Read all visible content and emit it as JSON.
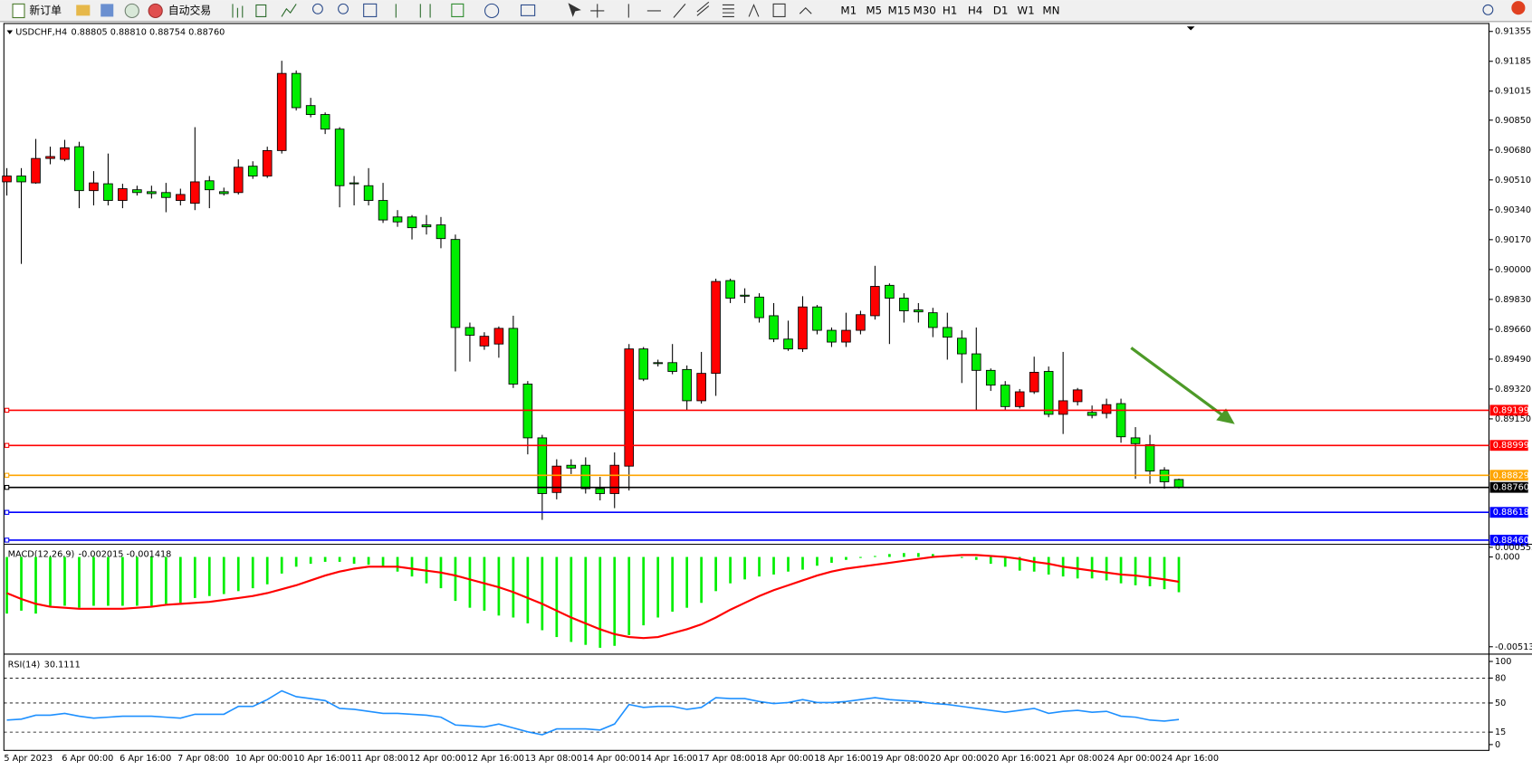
{
  "toolbar": {
    "new_order": "新订单",
    "auto_trading": "自动交易",
    "timeframes": [
      "M1",
      "M5",
      "M15",
      "M30",
      "H1",
      "H4",
      "D1",
      "W1",
      "MN"
    ]
  },
  "chart_data": [
    {
      "type": "candlestick",
      "title": "USDCHF,H4",
      "title_values": "0.88805 0.88810 0.88754 0.88760",
      "categories": [
        "5 Apr 2023",
        null,
        null,
        null,
        "6 Apr 00:00",
        null,
        null,
        null,
        "6 Apr 16:00",
        null,
        null,
        null,
        "7 Apr 08:00",
        null,
        null,
        null,
        "10 Apr 00:00",
        null,
        null,
        null,
        "10 Apr 16:00",
        null,
        null,
        null,
        "11 Apr 08:00",
        null,
        null,
        null,
        "12 Apr 00:00",
        null,
        null,
        null,
        "12 Apr 16:00",
        null,
        null,
        null,
        "13 Apr 08:00",
        null,
        null,
        null,
        "14 Apr 00:00",
        null,
        null,
        null,
        "14 Apr 16:00",
        null,
        null,
        null,
        "17 Apr 08:00",
        null,
        null,
        null,
        "18 Apr 00:00",
        null,
        null,
        null,
        "18 Apr 16:00",
        null,
        null,
        null,
        "19 Apr 08:00",
        null,
        null,
        null,
        "20 Apr 00:00",
        null,
        null,
        null,
        "20 Apr 16:00",
        null,
        null,
        null,
        "21 Apr 08:00",
        null,
        null,
        null,
        "24 Apr 00:00",
        null,
        null,
        null,
        "24 Apr 16:00",
        null
      ],
      "open": [
        0.90499,
        0.90532,
        0.90493,
        0.90632,
        0.90627,
        0.90699,
        0.90449,
        0.90488,
        0.90393,
        0.90454,
        0.90443,
        0.90438,
        0.90393,
        0.90377,
        0.90505,
        0.90443,
        0.90438,
        0.90588,
        0.90532,
        0.90677,
        0.91116,
        0.90933,
        0.90882,
        0.90799,
        0.90493,
        0.90477,
        0.90393,
        0.90299,
        0.90299,
        0.90254,
        0.90254,
        0.90171,
        0.8967,
        0.89565,
        0.89576,
        0.89665,
        0.89348,
        0.89042,
        0.88731,
        0.88886,
        0.88886,
        0.88753,
        0.88725,
        0.88881,
        0.89548,
        0.8947,
        0.8947,
        0.89431,
        0.89253,
        0.89409,
        0.89937,
        0.89854,
        0.89843,
        0.89737,
        0.89604,
        0.89548,
        0.89787,
        0.89654,
        0.89587,
        0.89654,
        0.89737,
        0.8991,
        0.89837,
        0.8977,
        0.89754,
        0.8967,
        0.89609,
        0.8952,
        0.89426,
        0.89342,
        0.8922,
        0.89304,
        0.8942,
        0.89176,
        0.89248,
        0.89187,
        0.89181,
        0.89237,
        0.89042,
        0.89003,
        0.88859,
        0.88805
      ],
      "high": [
        0.90577,
        0.90577,
        0.90743,
        0.90699,
        0.90738,
        0.90727,
        0.9056,
        0.9066,
        0.90488,
        0.90477,
        0.90477,
        0.90493,
        0.9046,
        0.9081,
        0.90532,
        0.90466,
        0.90627,
        0.90616,
        0.90699,
        0.91188,
        0.91133,
        0.90977,
        0.90894,
        0.9081,
        0.90532,
        0.90577,
        0.90493,
        0.90338,
        0.9031,
        0.9031,
        0.90299,
        0.90199,
        0.89698,
        0.89643,
        0.89676,
        0.89737,
        0.89365,
        0.89059,
        0.8892,
        0.8892,
        0.88931,
        0.8882,
        0.88959,
        0.89576,
        0.89559,
        0.89487,
        0.89576,
        0.89454,
        0.89531,
        0.89948,
        0.89948,
        0.89893,
        0.89865,
        0.89809,
        0.89709,
        0.89848,
        0.89798,
        0.8967,
        0.89754,
        0.89765,
        0.90021,
        0.89921,
        0.89865,
        0.89809,
        0.89782,
        0.89754,
        0.89654,
        0.8967,
        0.89437,
        0.89365,
        0.8932,
        0.89504,
        0.89448,
        0.89531,
        0.89326,
        0.89226,
        0.89265,
        0.89265,
        0.89103,
        0.89059,
        0.88875,
        0.8881
      ],
      "low": [
        0.90421,
        0.90032,
        0.90488,
        0.90599,
        0.90616,
        0.90349,
        0.90365,
        0.90365,
        0.90349,
        0.90421,
        0.90404,
        0.90326,
        0.90365,
        0.90338,
        0.90349,
        0.90421,
        0.90427,
        0.90516,
        0.90521,
        0.9066,
        0.90905,
        0.90866,
        0.90771,
        0.90354,
        0.90365,
        0.90365,
        0.90265,
        0.90243,
        0.90171,
        0.90199,
        0.90121,
        0.8942,
        0.89476,
        0.89543,
        0.89498,
        0.89326,
        0.88948,
        0.88575,
        0.88692,
        0.88836,
        0.88725,
        0.88686,
        0.88642,
        0.88742,
        0.89365,
        0.89448,
        0.89404,
        0.89198,
        0.89237,
        0.89281,
        0.89809,
        0.89809,
        0.89698,
        0.89587,
        0.89537,
        0.89531,
        0.89631,
        0.89559,
        0.89559,
        0.89631,
        0.89715,
        0.89576,
        0.89698,
        0.89698,
        0.89615,
        0.89487,
        0.89354,
        0.89198,
        0.89309,
        0.89198,
        0.89209,
        0.89292,
        0.89159,
        0.89064,
        0.89226,
        0.89153,
        0.89153,
        0.89014,
        0.88809,
        0.88781,
        0.88753,
        0.88754
      ],
      "close": [
        0.90532,
        0.90499,
        0.90632,
        0.90643,
        0.90693,
        0.90449,
        0.90493,
        0.90393,
        0.9046,
        0.90438,
        0.90432,
        0.9041,
        0.90427,
        0.90499,
        0.90454,
        0.90432,
        0.90582,
        0.90532,
        0.90677,
        0.91116,
        0.90921,
        0.90882,
        0.90799,
        0.90477,
        0.90488,
        0.90393,
        0.90282,
        0.90271,
        0.90238,
        0.90243,
        0.90176,
        0.8967,
        0.89626,
        0.8962,
        0.89665,
        0.89348,
        0.89042,
        0.88725,
        0.88881,
        0.8887,
        0.88753,
        0.88725,
        0.88886,
        0.89548,
        0.89376,
        0.89465,
        0.8942,
        0.89253,
        0.89409,
        0.89932,
        0.89837,
        0.89848,
        0.89726,
        0.89604,
        0.89548,
        0.89787,
        0.89654,
        0.89587,
        0.89654,
        0.89743,
        0.89904,
        0.89837,
        0.89765,
        0.89759,
        0.8967,
        0.89615,
        0.8952,
        0.89426,
        0.89342,
        0.8922,
        0.89304,
        0.89415,
        0.89176,
        0.89253,
        0.89315,
        0.8917,
        0.89231,
        0.89048,
        0.89009,
        0.88853,
        0.88792,
        0.8876
      ],
      "up_color": "#ff0000",
      "down_color": "#00ee00",
      "ylim": [
        0.88442,
        0.914
      ],
      "yticks": [
        0.91355,
        0.91185,
        0.91015,
        {
          "value": 0.9085,
          "label": "0.90850"
        },
        {
          "value": 0.9068,
          "label": "0.90680"
        },
        {
          "value": 0.9051,
          "label": "0.90510"
        },
        {
          "value": 0.9034,
          "label": "0.90340"
        },
        {
          "value": 0.9017,
          "label": "0.90170"
        },
        {
          "value": 0.9,
          "label": "0.90000"
        },
        {
          "value": 0.8983,
          "label": "0.89830"
        },
        {
          "value": 0.8966,
          "label": "0.89660"
        },
        {
          "value": 0.8949,
          "label": "0.89490"
        },
        {
          "value": 0.8932,
          "label": "0.89320"
        },
        {
          "value": 0.8915,
          "label": "0.89150"
        }
      ],
      "hlines": [
        {
          "value": 0.89199,
          "color": "#ff0000"
        },
        {
          "value": 0.88999,
          "color": "#ff0000"
        },
        {
          "value": 0.88829,
          "color": "#ffa500"
        },
        {
          "value": 0.8876,
          "label": "0.88760",
          "color": "#000000"
        },
        {
          "value": 0.88618,
          "color": "#0000ff"
        },
        {
          "value": 0.8846,
          "label": "0.88460",
          "color": "#0000ff"
        }
      ]
    },
    {
      "type": "macd",
      "title": "MACD(12,26,9)",
      "title_values": "-0.002015 -0.001418",
      "series": [
        {
          "name": "MACD",
          "color": "#00ee00",
          "values": [
            -0.003236,
            -0.003069,
            -0.003236,
            -0.00279,
            -0.00279,
            -0.002902,
            -0.00279,
            -0.00279,
            -0.00279,
            -0.00279,
            -0.00279,
            -0.002678,
            -0.002623,
            -0.002344,
            -0.002232,
            -0.00212,
            -0.001953,
            -0.001786,
            -0.001562,
            -0.000949,
            -0.000558,
            -0.000391,
            -0.000279,
            -0.000279,
            -0.000391,
            -0.000446,
            -0.000558,
            -0.000837,
            -0.001116,
            -0.001507,
            -0.001786,
            -0.002511,
            -0.002902,
            -0.003069,
            -0.003348,
            -0.00346,
            -0.003794,
            -0.004185,
            -0.004576,
            -0.004855,
            -0.005022,
            -0.005189,
            -0.005078,
            -0.004464,
            -0.003906,
            -0.00346,
            -0.003125,
            -0.002902,
            -0.002623,
            -0.001953,
            -0.001507,
            -0.001283,
            -0.001116,
            -0.001004,
            -0.000837,
            -0.000725,
            -0.000502,
            -0.000335,
            -0.000167,
            -5.6e-05,
            5.6e-05,
            0.000167,
            0.000223,
            0.000223,
            0.000167,
            5.6e-05,
            -5.6e-05,
            -0.000167,
            -0.000391,
            -0.000558,
            -0.000781,
            -0.000837,
            -0.001004,
            -0.001116,
            -0.001228,
            -0.001228,
            -0.001339,
            -0.001507,
            -0.001618,
            -0.001674,
            -0.001841,
            -0.002015
          ]
        },
        {
          "name": "Signal",
          "color": "#ff0000",
          "values": [
            -0.002065,
            -0.002399,
            -0.002678,
            -0.002846,
            -0.002902,
            -0.002957,
            -0.002957,
            -0.002957,
            -0.002957,
            -0.002902,
            -0.002846,
            -0.002734,
            -0.002678,
            -0.002623,
            -0.002567,
            -0.002455,
            -0.002344,
            -0.002232,
            -0.002065,
            -0.001841,
            -0.001618,
            -0.001339,
            -0.00106,
            -0.000837,
            -0.00067,
            -0.000558,
            -0.000558,
            -0.000558,
            -0.00067,
            -0.000781,
            -0.000893,
            -0.00106,
            -0.001283,
            -0.001507,
            -0.00173,
            -0.002009,
            -0.002344,
            -0.002678,
            -0.003069,
            -0.00346,
            -0.003794,
            -0.004129,
            -0.004408,
            -0.004576,
            -0.004631,
            -0.004576,
            -0.004352,
            -0.004129,
            -0.00385,
            -0.00346,
            -0.003013,
            -0.002623,
            -0.002232,
            -0.001897,
            -0.001618,
            -0.001339,
            -0.00106,
            -0.000837,
            -0.00067,
            -0.000558,
            -0.000446,
            -0.000335,
            -0.000223,
            -0.000112,
            0,
            5.6e-05,
            0.000112,
            0.000112,
            5.6e-05,
            0,
            -0.000112,
            -0.000279,
            -0.000391,
            -0.000558,
            -0.00067,
            -0.000781,
            -0.000893,
            -0.001004,
            -0.00106,
            -0.001172,
            -0.001283,
            -0.001418
          ]
        }
      ],
      "ylim": [
        -0.00547,
        0.00067
      ],
      "yticks": [
        0.000552,
        {
          "value": 0,
          "label": "0.000"
        },
        -0.00513
      ]
    },
    {
      "type": "rsi",
      "title": "RSI(14)",
      "title_values": "30.1111",
      "series": [
        {
          "name": "RSI",
          "color": "#1e90ff",
          "values": [
            29.4,
            30.6,
            35.3,
            35.3,
            37.6,
            34.1,
            31.8,
            32.9,
            34.1,
            34.1,
            34.1,
            32.9,
            31.8,
            36.5,
            36.5,
            36.5,
            45.9,
            45.9,
            54.1,
            64.7,
            57.6,
            55.3,
            52.9,
            43.5,
            42.4,
            40.0,
            37.6,
            37.6,
            36.5,
            35.3,
            32.9,
            23.5,
            22.4,
            21.2,
            24.7,
            20.0,
            15.3,
            11.8,
            18.8,
            18.8,
            18.8,
            17.6,
            24.7,
            48.2,
            44.7,
            45.9,
            45.9,
            42.4,
            44.7,
            56.5,
            55.3,
            55.3,
            51.8,
            49.4,
            50.6,
            54.1,
            50.6,
            50.6,
            51.8,
            54.1,
            56.5,
            54.1,
            52.9,
            51.8,
            49.4,
            48.2,
            45.9,
            43.5,
            41.2,
            38.8,
            41.2,
            43.5,
            37.6,
            40.0,
            41.2,
            38.8,
            40.0,
            34.1,
            32.9,
            29.4,
            28.2,
            30.1111
          ]
        }
      ],
      "ylim": [
        -7,
        107
      ],
      "yticks": [
        100,
        80,
        50,
        15,
        0
      ],
      "levels": [
        80,
        50,
        15
      ]
    }
  ]
}
